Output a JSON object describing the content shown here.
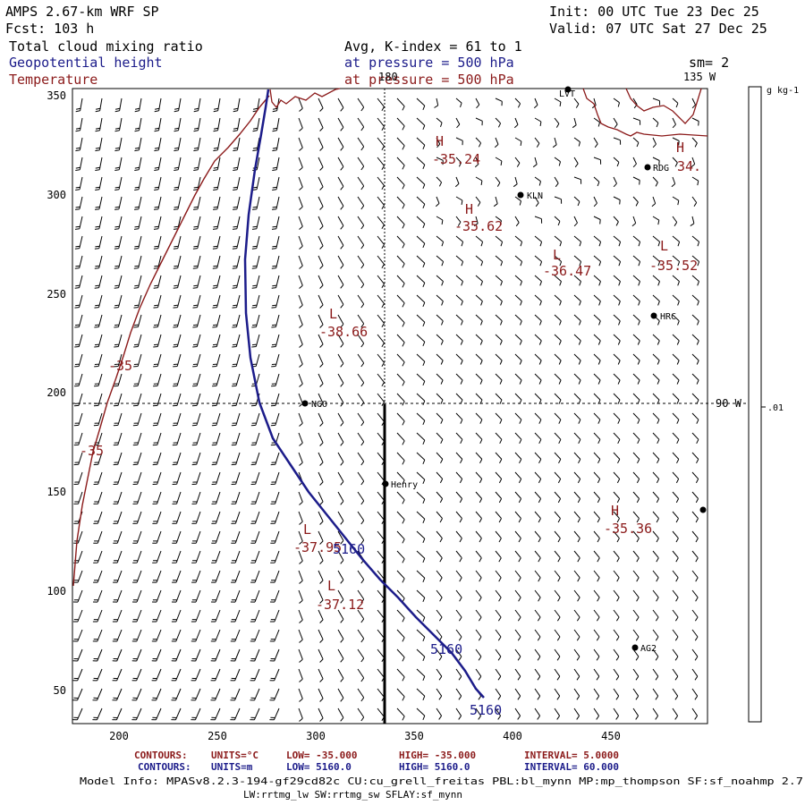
{
  "header": {
    "model": "AMPS 2.67-km WRF SP",
    "forecast": "Fcst: 103 h",
    "init": "Init: 00 UTC Tue 23 Dec 25",
    "valid": "Valid: 07 UTC Sat 27 Dec 25",
    "field1": "Total cloud mixing ratio",
    "field2": "Geopotential height",
    "field3": "Temperature",
    "avg": "Avg, K-index =  61 to   1",
    "pressure1": "at pressure =  500 hPa",
    "pressure2": "at pressure =  500 hPa",
    "sm": "sm= 2",
    "lon135": "135 W",
    "lon180": "180",
    "lon90": "90 W"
  },
  "colorbar": {
    "unit": "g kg-1",
    "tick": ".01"
  },
  "axes": {
    "x_ticks": [
      "200",
      "250",
      "300",
      "350",
      "400",
      "450"
    ],
    "y_ticks": [
      "350",
      "300",
      "250",
      "200",
      "150",
      "100",
      "50"
    ]
  },
  "colors": {
    "temperature": "#8b1a1a",
    "geopotential": "#1c1c8a",
    "coast": "#8b1a1a"
  },
  "map_labels": {
    "H1": "H",
    "H1v": "-35.24",
    "H2": "H",
    "H2v": "-35.62",
    "H3": "H",
    "H3v": "34.",
    "L1": "L",
    "L1v": "-36.47",
    "L2": "L",
    "L2v": "-35.52",
    "L3": "L",
    "L3v": "-38.66",
    "L4": "L",
    "L4v": "-37.95",
    "L5": "L",
    "L5v": "-37.12",
    "H4": "H",
    "H4v": "-35.36",
    "t35a": "-35",
    "t35b": "-35",
    "g5160a": "5160",
    "g5160b": "5160",
    "g5160c": "5160"
  },
  "stations": {
    "lvt": "LVT",
    "rdg": "RDG",
    "kln": "KLN",
    "hrc": "HRC",
    "nco": "NCO",
    "henry": "Henry",
    "ag2": "AG2"
  },
  "footer": {
    "c1_title": "CONTOURS:",
    "c1_units": "UNITS=°C",
    "c1_low": "LOW= -35.000",
    "c1_high": "HIGH= -35.000",
    "c1_int": "INTERVAL=   5.0000",
    "c2_title": "CONTOURS:",
    "c2_units": "UNITS=m",
    "c2_low": "LOW=  5160.0",
    "c2_high": "HIGH=  5160.0",
    "c2_int": "INTERVAL=   60.000",
    "info1": "Model Info: MPASv8.2.3-194-gf29cd82c CU:cu_grell_freitas PBL:bl_mynn MP:mp_thompson SF:sf_noahmp 2.7",
    "info2": "LW:rrtmg_lw SW:rrtmg_sw SFLAY:sf_mynn"
  }
}
